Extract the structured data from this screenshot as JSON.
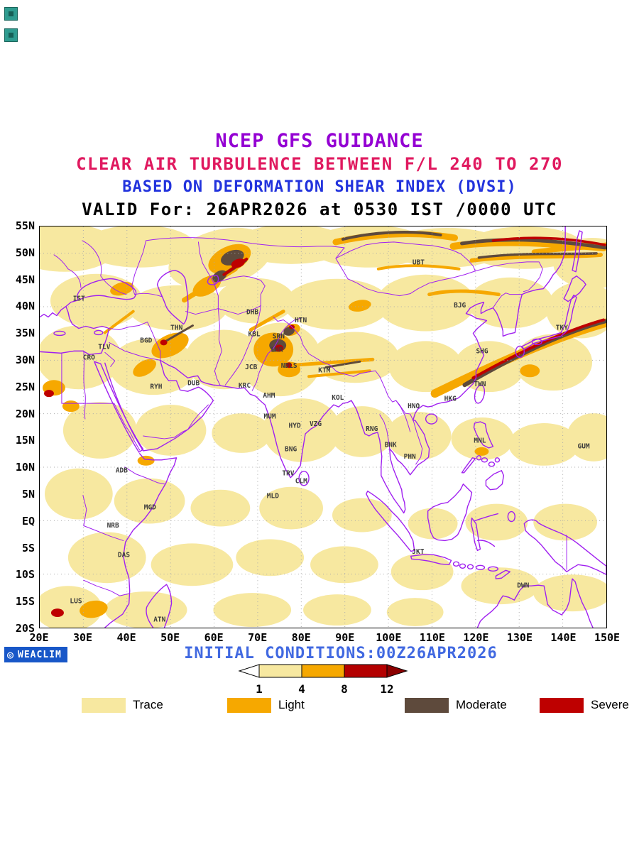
{
  "titles": {
    "line1": "NCEP GFS GUIDANCE",
    "line2": "CLEAR AIR TURBULENCE BETWEEN F/L 240 TO 270",
    "line3": "BASED ON DEFORMATION SHEAR INDEX (DVSI)",
    "line4": "VALID For: 26APR2026 at 0530 IST /0000 UTC"
  },
  "colors": {
    "title1": "#9400D3",
    "title2": "#E0195F",
    "title3": "#2233DD",
    "valid": "#000000",
    "trace": "#F7E8A0",
    "light": "#F6A800",
    "moderate": "#5E4A3C",
    "severe": "#BE0000",
    "coast": "#A020F0",
    "grid": "#AAAAAA",
    "station": "#3C3C3C",
    "initial": "#4169E1",
    "logo_bg": "#1857C8"
  },
  "map": {
    "extent": {
      "lon_min": 20,
      "lon_max": 150,
      "lat_min": -20,
      "lat_max": 55
    },
    "lat_labels": [
      {
        "label": "55N",
        "lat": 55
      },
      {
        "label": "50N",
        "lat": 50
      },
      {
        "label": "45N",
        "lat": 45
      },
      {
        "label": "40N",
        "lat": 40
      },
      {
        "label": "35N",
        "lat": 35
      },
      {
        "label": "30N",
        "lat": 30
      },
      {
        "label": "25N",
        "lat": 25
      },
      {
        "label": "20N",
        "lat": 20
      },
      {
        "label": "15N",
        "lat": 15
      },
      {
        "label": "10N",
        "lat": 10
      },
      {
        "label": "5N",
        "lat": 5
      },
      {
        "label": "EQ",
        "lat": 0
      },
      {
        "label": "5S",
        "lat": -5
      },
      {
        "label": "10S",
        "lat": -10
      },
      {
        "label": "15S",
        "lat": -15
      },
      {
        "label": "20S",
        "lat": -20
      }
    ],
    "lon_labels": [
      {
        "label": "20E",
        "lon": 20
      },
      {
        "label": "30E",
        "lon": 30
      },
      {
        "label": "40E",
        "lon": 40
      },
      {
        "label": "50E",
        "lon": 50
      },
      {
        "label": "60E",
        "lon": 60
      },
      {
        "label": "70E",
        "lon": 70
      },
      {
        "label": "80E",
        "lon": 80
      },
      {
        "label": "90E",
        "lon": 90
      },
      {
        "label": "100E",
        "lon": 100
      },
      {
        "label": "110E",
        "lon": 110
      },
      {
        "label": "120E",
        "lon": 120
      },
      {
        "label": "130E",
        "lon": 130
      },
      {
        "label": "140E",
        "lon": 140
      },
      {
        "label": "150E",
        "lon": 150
      }
    ],
    "grid": {
      "lats": [
        50,
        40,
        30,
        20,
        10,
        0,
        -10
      ],
      "lons": [
        30,
        40,
        50,
        60,
        70,
        80,
        90,
        100,
        110,
        120,
        130,
        140
      ]
    },
    "stations": [
      {
        "id": "IST",
        "lon": 29.0,
        "lat": 41.1
      },
      {
        "id": "CRO",
        "lon": 31.3,
        "lat": 30.1
      },
      {
        "id": "TLV",
        "lon": 34.8,
        "lat": 32.1
      },
      {
        "id": "BGD",
        "lon": 44.4,
        "lat": 33.3
      },
      {
        "id": "THN",
        "lon": 51.4,
        "lat": 35.7
      },
      {
        "id": "RYH",
        "lon": 46.7,
        "lat": 24.7
      },
      {
        "id": "DUB",
        "lon": 55.3,
        "lat": 25.3
      },
      {
        "id": "ADB",
        "lon": 38.8,
        "lat": 9.0
      },
      {
        "id": "MGD",
        "lon": 45.3,
        "lat": 2.1
      },
      {
        "id": "NRB",
        "lon": 36.8,
        "lat": -1.3
      },
      {
        "id": "DAS",
        "lon": 39.3,
        "lat": -6.8
      },
      {
        "id": "LUS",
        "lon": 28.3,
        "lat": -15.4
      },
      {
        "id": "ATN",
        "lon": 47.5,
        "lat": -18.9
      },
      {
        "id": "DHB",
        "lon": 68.8,
        "lat": 38.6
      },
      {
        "id": "KBL",
        "lon": 69.2,
        "lat": 34.5
      },
      {
        "id": "SRN",
        "lon": 74.8,
        "lat": 34.1
      },
      {
        "id": "LHR",
        "lon": 74.4,
        "lat": 31.6
      },
      {
        "id": "HTN",
        "lon": 79.9,
        "lat": 37.1
      },
      {
        "id": "JCB",
        "lon": 68.5,
        "lat": 28.3
      },
      {
        "id": "NDLS",
        "lon": 77.2,
        "lat": 28.6
      },
      {
        "id": "KRC",
        "lon": 67.0,
        "lat": 24.9
      },
      {
        "id": "AHM",
        "lon": 72.6,
        "lat": 23.0
      },
      {
        "id": "MUM",
        "lon": 72.8,
        "lat": 19.1
      },
      {
        "id": "HYD",
        "lon": 78.5,
        "lat": 17.4
      },
      {
        "id": "VZG",
        "lon": 83.3,
        "lat": 17.7
      },
      {
        "id": "BNG",
        "lon": 77.6,
        "lat": 13.0
      },
      {
        "id": "TRV",
        "lon": 77.0,
        "lat": 8.5
      },
      {
        "id": "CLM",
        "lon": 80.0,
        "lat": 7.0
      },
      {
        "id": "MLD",
        "lon": 73.5,
        "lat": 4.2
      },
      {
        "id": "KTM",
        "lon": 85.3,
        "lat": 27.7
      },
      {
        "id": "KOL",
        "lon": 88.4,
        "lat": 22.6
      },
      {
        "id": "RNG",
        "lon": 96.2,
        "lat": 16.8
      },
      {
        "id": "BNK",
        "lon": 100.5,
        "lat": 13.8
      },
      {
        "id": "PHN",
        "lon": 104.9,
        "lat": 11.6
      },
      {
        "id": "HNO",
        "lon": 105.8,
        "lat": 21.0
      },
      {
        "id": "HKG",
        "lon": 114.2,
        "lat": 22.4
      },
      {
        "id": "TWN",
        "lon": 121.0,
        "lat": 25.1
      },
      {
        "id": "SHG",
        "lon": 121.5,
        "lat": 31.3
      },
      {
        "id": "UBT",
        "lon": 106.9,
        "lat": 47.9
      },
      {
        "id": "BJG",
        "lon": 116.4,
        "lat": 39.9
      },
      {
        "id": "TKY",
        "lon": 139.8,
        "lat": 35.7
      },
      {
        "id": "MNL",
        "lon": 121.0,
        "lat": 14.6
      },
      {
        "id": "GUM",
        "lon": 144.8,
        "lat": 13.5
      },
      {
        "id": "JKT",
        "lon": 106.8,
        "lat": -6.2
      },
      {
        "id": "DWN",
        "lon": 130.9,
        "lat": -12.5
      }
    ]
  },
  "footer": {
    "logo_text": "WEACLIM",
    "initial_conditions": "INITIAL CONDITIONS:00Z26APR2026",
    "colorbar": {
      "values": [
        "1",
        "4",
        "8",
        "12"
      ],
      "cell_colors": [
        "#F7E8A0",
        "#F6A800",
        "#B40000"
      ],
      "arrow_left_color": "#FFFFFF",
      "arrow_right_color": "#8B0000"
    },
    "legend": [
      {
        "label": "Trace",
        "color": "#F7E8A0"
      },
      {
        "label": "Light",
        "color": "#F6A800"
      },
      {
        "label": "Moderate",
        "color": "#5E4A3C"
      },
      {
        "label": "Severe",
        "color": "#BE0000"
      }
    ]
  }
}
